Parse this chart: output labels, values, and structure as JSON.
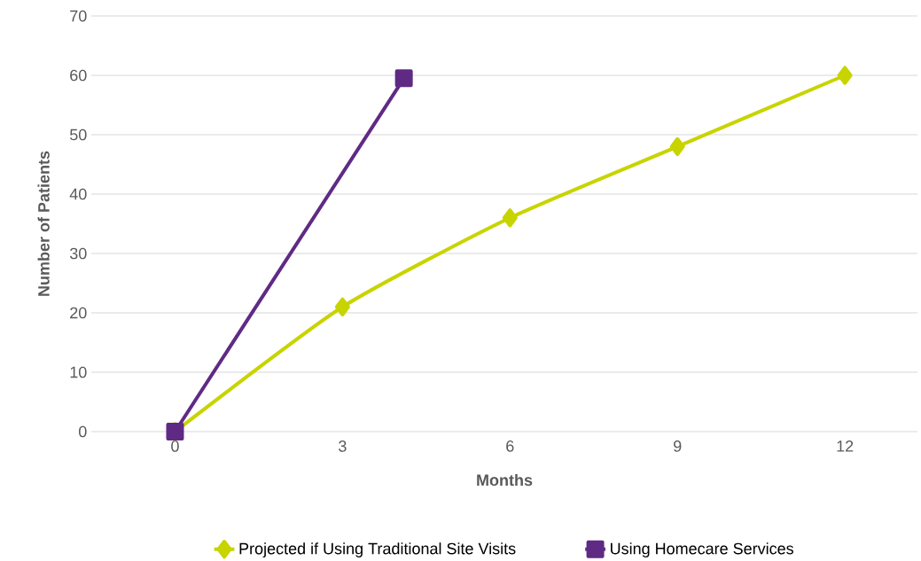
{
  "chart_data": {
    "type": "line",
    "xlabel": "Months",
    "ylabel": "Number of Patients",
    "xlim": [
      -1.5,
      13.3
    ],
    "xticks": [
      0,
      3,
      6,
      9,
      12
    ],
    "ylim": [
      0,
      70
    ],
    "yticks": [
      0,
      10,
      20,
      30,
      40,
      50,
      60,
      70
    ],
    "grid": "y",
    "legend": "bottom",
    "series": [
      {
        "name": "Projected if Using Traditional Site Visits",
        "color": "#c8d400",
        "marker": "diamond",
        "x": [
          0,
          3,
          6,
          9,
          12
        ],
        "values": [
          0,
          21,
          36,
          48,
          60
        ]
      },
      {
        "name": "Using Homecare Services",
        "color": "#5f2a84",
        "marker": "square",
        "x": [
          0,
          4.1
        ],
        "values": [
          0,
          59.5
        ]
      }
    ]
  }
}
